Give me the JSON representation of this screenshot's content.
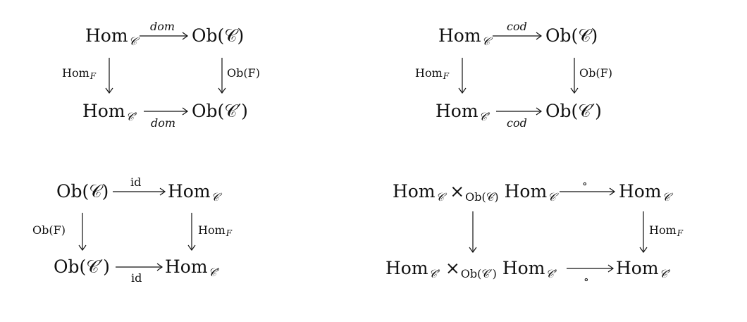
{
  "diagrams": [
    {
      "nodes": {
        "top_left": {
          "main": "Hom",
          "sub": "𝒞"
        },
        "top_right": {
          "main": "Ob(𝒞)"
        },
        "bottom_left": {
          "main": "Hom",
          "sub": "𝒞′"
        },
        "bottom_right": {
          "main": "Ob(𝒞′)"
        }
      },
      "edges": {
        "top": "dom",
        "bottom": "dom",
        "left": {
          "main": "Hom",
          "sub": "F"
        },
        "right": "Ob(F)"
      }
    },
    {
      "nodes": {
        "top_left": {
          "main": "Hom",
          "sub": "𝒞"
        },
        "top_right": {
          "main": "Ob(𝒞)"
        },
        "bottom_left": {
          "main": "Hom",
          "sub": "𝒞′"
        },
        "bottom_right": {
          "main": "Ob(𝒞′)"
        }
      },
      "edges": {
        "top": "cod",
        "bottom": "cod",
        "left": {
          "main": "Hom",
          "sub": "F"
        },
        "right": "Ob(F)"
      }
    },
    {
      "nodes": {
        "top_left": {
          "main": "Ob(𝒞)"
        },
        "top_right": {
          "main": "Hom",
          "sub": "𝒞"
        },
        "bottom_left": {
          "main": "Ob(𝒞′)"
        },
        "bottom_right": {
          "main": "Hom",
          "sub": "𝒞′"
        }
      },
      "edges": {
        "top": "id",
        "bottom": "id",
        "left": "Ob(F)",
        "right": {
          "main": "Hom",
          "sub": "F"
        }
      }
    },
    {
      "nodes": {
        "top_left": {
          "main": "Hom",
          "sub": "𝒞",
          "times": "×",
          "times_sub": "Ob(𝒞)",
          "main2": "Hom",
          "sub2": "𝒞"
        },
        "top_right": {
          "main": "Hom",
          "sub": "𝒞"
        },
        "bottom_left": {
          "main": "Hom",
          "sub": "𝒞′",
          "times": "×",
          "times_sub": "Ob(𝒞′)",
          "main2": "Hom",
          "sub2": "𝒞′"
        },
        "bottom_right": {
          "main": "Hom",
          "sub": "𝒞′"
        }
      },
      "edges": {
        "top": "∘",
        "bottom": "∘",
        "right": {
          "main": "Hom",
          "sub": "F"
        }
      }
    }
  ]
}
